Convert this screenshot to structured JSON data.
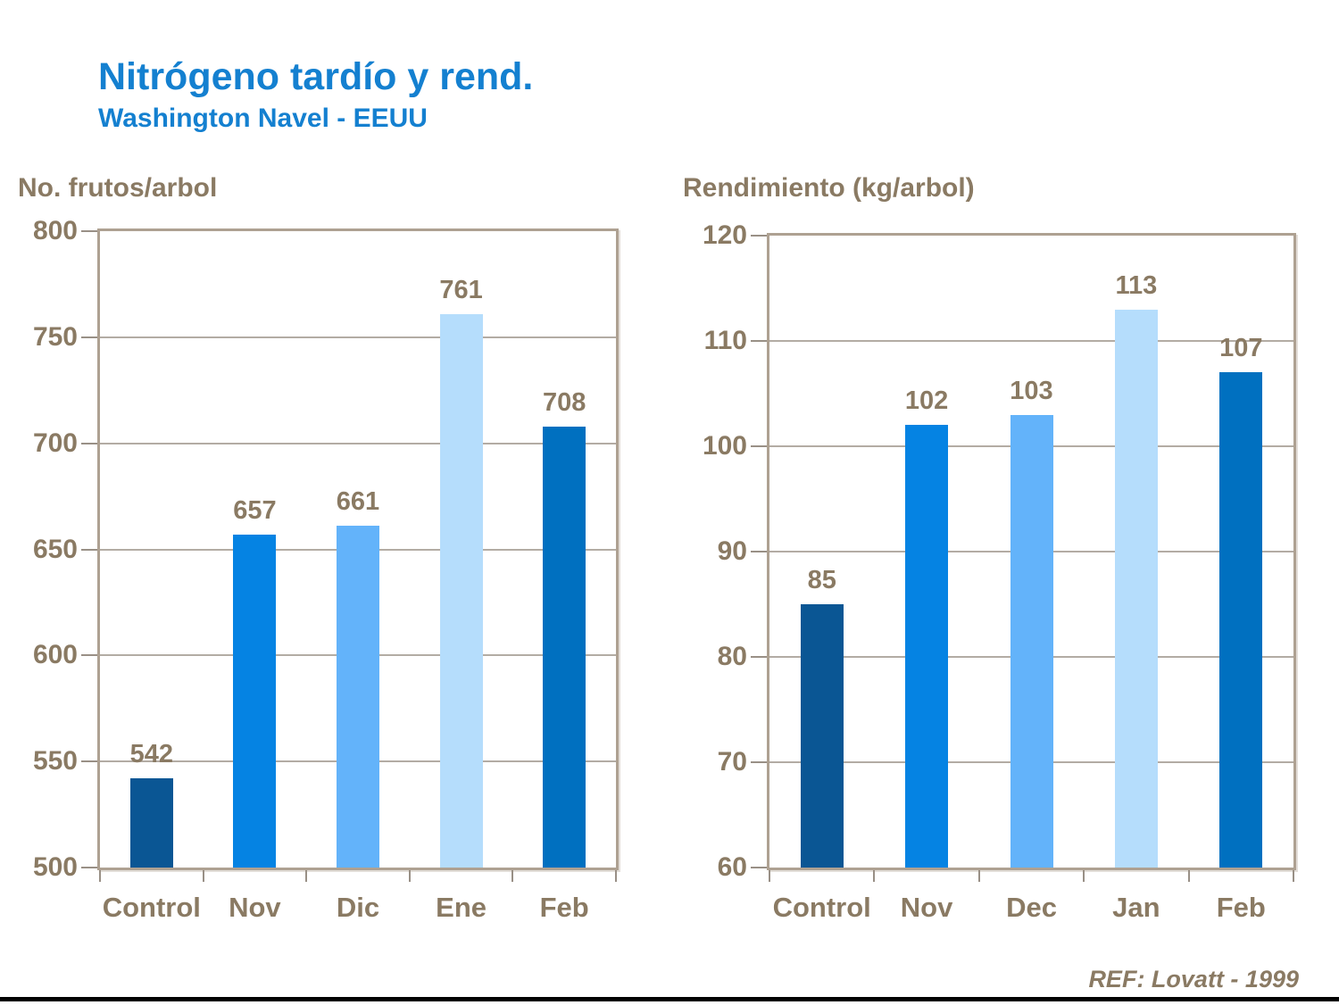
{
  "slide": {
    "title": "Nitrógeno tardío y rend.",
    "subtitle": "Washington Navel - EEUU",
    "reference": "REF: Lovatt - 1999"
  },
  "colors": {
    "title_blue": "#1480D0",
    "text_brown": "#8A7A63",
    "frame_tan": "#AEA192",
    "gridline": "#999086",
    "divider_black": "#000000"
  },
  "chart_data": [
    {
      "type": "bar",
      "title": "No. frutos/arbol",
      "categories": [
        "Control",
        "Nov",
        "Dic",
        "Ene",
        "Feb"
      ],
      "values": [
        542,
        657,
        661,
        761,
        708
      ],
      "ylim": [
        500,
        800
      ],
      "yticks": [
        500,
        550,
        600,
        650,
        700,
        750,
        800
      ],
      "grid": true,
      "legend_position": "none",
      "bar_colors": [
        "#0A5694",
        "#0583E3",
        "#63B3FA",
        "#B5DDFC",
        "#0070C0"
      ]
    },
    {
      "type": "bar",
      "title": "Rendimiento (kg/arbol)",
      "categories": [
        "Control",
        "Nov",
        "Dec",
        "Jan",
        "Feb"
      ],
      "values": [
        85,
        102,
        103,
        113,
        107
      ],
      "ylim": [
        60,
        120
      ],
      "yticks": [
        60,
        70,
        80,
        90,
        100,
        110,
        120
      ],
      "grid": true,
      "legend_position": "none",
      "bar_colors": [
        "#0A5694",
        "#0583E3",
        "#63B3FA",
        "#B5DDFC",
        "#0070C0"
      ]
    }
  ]
}
